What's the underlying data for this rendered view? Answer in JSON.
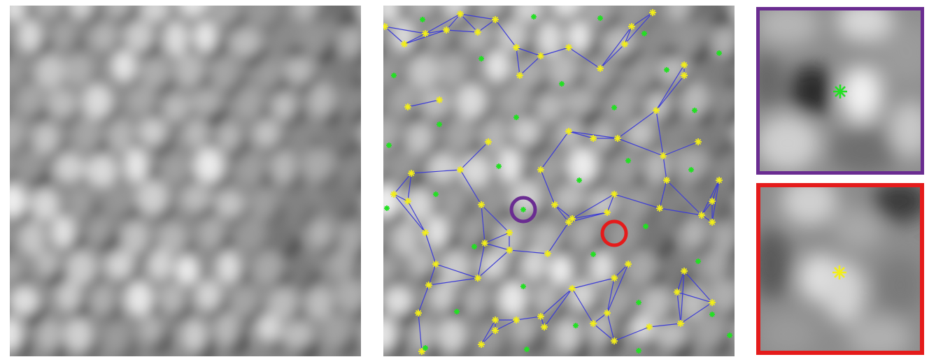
{
  "figure": {
    "panels": [
      {
        "id": "raw",
        "kind": "grayscale-cell-mosaic-image"
      },
      {
        "id": "voronoi",
        "kind": "grayscale-cell-mosaic-with-voronoi-overlay"
      },
      {
        "id": "inset-purple",
        "kind": "zoomed-crop",
        "marker": "green-asterisk"
      },
      {
        "id": "inset-red",
        "kind": "zoomed-crop",
        "marker": "yellow-asterisk"
      }
    ],
    "colors": {
      "voronoi_edges": "#3d3dd6",
      "cell_center_marker": "#22e022",
      "vertex_marker": "#f2ee1a",
      "highlight_purple": "#6a2c91",
      "highlight_red": "#e51b1b"
    },
    "highlights": [
      {
        "color": "purple",
        "marker_type": "cell-center"
      },
      {
        "color": "red",
        "marker_type": "vertex"
      }
    ]
  }
}
